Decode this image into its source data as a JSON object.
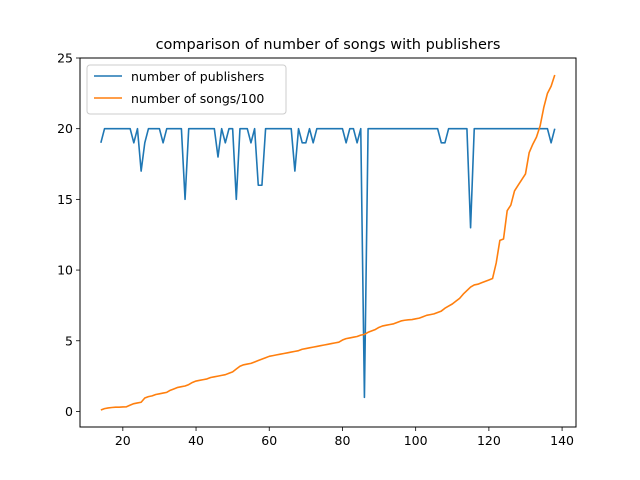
{
  "chart_data": {
    "type": "line",
    "title": "comparison of number of songs with publishers",
    "xlabel": "",
    "ylabel": "",
    "xlim": [
      8.3,
      143.8
    ],
    "ylim": [
      -1.1,
      25
    ],
    "xticks": [
      20,
      40,
      60,
      80,
      100,
      120,
      140
    ],
    "yticks": [
      0,
      5,
      10,
      15,
      20,
      25
    ],
    "grid": false,
    "legend_position": "upper-left",
    "series": [
      {
        "name": "number of publishers",
        "color": "#1f77b4",
        "x": [
          14,
          15,
          16,
          17,
          18,
          19,
          20,
          21,
          22,
          23,
          24,
          25,
          26,
          27,
          28,
          29,
          30,
          31,
          32,
          33,
          34,
          35,
          36,
          37,
          38,
          39,
          40,
          41,
          42,
          43,
          44,
          45,
          46,
          47,
          48,
          49,
          50,
          51,
          52,
          53,
          54,
          55,
          56,
          57,
          58,
          59,
          60,
          61,
          62,
          63,
          64,
          65,
          66,
          67,
          68,
          69,
          70,
          71,
          72,
          73,
          74,
          75,
          76,
          77,
          78,
          79,
          80,
          81,
          82,
          83,
          84,
          85,
          86,
          87,
          88,
          89,
          90,
          91,
          92,
          93,
          94,
          95,
          96,
          97,
          98,
          99,
          100,
          101,
          102,
          103,
          104,
          105,
          106,
          107,
          108,
          109,
          110,
          111,
          112,
          113,
          114,
          115,
          116,
          117,
          118,
          119,
          120,
          121,
          122,
          123,
          124,
          125,
          126,
          127,
          128,
          129,
          130,
          131,
          132,
          133,
          134,
          135,
          136,
          137,
          138
        ],
        "y": [
          19,
          20,
          20,
          20,
          20,
          20,
          20,
          20,
          20,
          19,
          20,
          17,
          19,
          20,
          20,
          20,
          20,
          19,
          20,
          20,
          20,
          20,
          20,
          15,
          20,
          20,
          20,
          20,
          20,
          20,
          20,
          20,
          18,
          20,
          19,
          20,
          20,
          15,
          20,
          20,
          20,
          19,
          20,
          16,
          16,
          20,
          20,
          20,
          20,
          20,
          20,
          20,
          20,
          17,
          20,
          19,
          19,
          20,
          19,
          20,
          20,
          20,
          20,
          20,
          20,
          20,
          20,
          19,
          20,
          20,
          19,
          20,
          1,
          20,
          20,
          20,
          20,
          20,
          20,
          20,
          20,
          20,
          20,
          20,
          20,
          20,
          20,
          20,
          20,
          20,
          20,
          20,
          20,
          19,
          19,
          20,
          20,
          20,
          20,
          20,
          20,
          13,
          20,
          20,
          20,
          20,
          20,
          20,
          20,
          20,
          20,
          20,
          20,
          20,
          20,
          20,
          20,
          20,
          20,
          20,
          20,
          20,
          20,
          19,
          20
        ]
      },
      {
        "name": "number of songs/100",
        "color": "#ff7f0e",
        "x": [
          14,
          15,
          16,
          17,
          18,
          19,
          20,
          21,
          22,
          23,
          24,
          25,
          26,
          27,
          28,
          29,
          30,
          31,
          32,
          33,
          34,
          35,
          36,
          37,
          38,
          39,
          40,
          41,
          42,
          43,
          44,
          45,
          46,
          47,
          48,
          49,
          50,
          51,
          52,
          53,
          54,
          55,
          56,
          57,
          58,
          59,
          60,
          61,
          62,
          63,
          64,
          65,
          66,
          67,
          68,
          69,
          70,
          71,
          72,
          73,
          74,
          75,
          76,
          77,
          78,
          79,
          80,
          81,
          82,
          83,
          84,
          85,
          86,
          87,
          88,
          89,
          90,
          91,
          92,
          93,
          94,
          95,
          96,
          97,
          98,
          99,
          100,
          101,
          102,
          103,
          104,
          105,
          106,
          107,
          108,
          109,
          110,
          111,
          112,
          113,
          114,
          115,
          116,
          117,
          118,
          119,
          120,
          121,
          122,
          123,
          124,
          125,
          126,
          127,
          128,
          129,
          130,
          131,
          132,
          133,
          134,
          135,
          136,
          137,
          138
        ],
        "y": [
          0.1,
          0.2,
          0.25,
          0.28,
          0.3,
          0.3,
          0.32,
          0.33,
          0.45,
          0.55,
          0.6,
          0.65,
          0.95,
          1.05,
          1.1,
          1.2,
          1.25,
          1.3,
          1.35,
          1.5,
          1.6,
          1.7,
          1.75,
          1.8,
          1.9,
          2.05,
          2.15,
          2.2,
          2.25,
          2.3,
          2.4,
          2.45,
          2.5,
          2.55,
          2.6,
          2.7,
          2.8,
          3.0,
          3.2,
          3.3,
          3.35,
          3.4,
          3.5,
          3.6,
          3.7,
          3.8,
          3.9,
          3.95,
          4.0,
          4.05,
          4.1,
          4.15,
          4.2,
          4.25,
          4.3,
          4.4,
          4.45,
          4.5,
          4.55,
          4.6,
          4.65,
          4.7,
          4.75,
          4.8,
          4.85,
          4.9,
          5.05,
          5.15,
          5.2,
          5.25,
          5.3,
          5.4,
          5.45,
          5.6,
          5.7,
          5.8,
          5.95,
          6.05,
          6.1,
          6.15,
          6.2,
          6.3,
          6.4,
          6.45,
          6.48,
          6.5,
          6.55,
          6.6,
          6.7,
          6.8,
          6.85,
          6.9,
          7.0,
          7.1,
          7.3,
          7.45,
          7.6,
          7.8,
          8.0,
          8.3,
          8.55,
          8.8,
          8.95,
          9.0,
          9.1,
          9.2,
          9.3,
          9.4,
          10.5,
          12.1,
          12.2,
          14.2,
          14.6,
          15.6,
          16.0,
          16.4,
          16.8,
          18.3,
          18.9,
          19.4,
          20.2,
          21.5,
          22.5,
          23.0,
          23.8
        ]
      }
    ]
  }
}
